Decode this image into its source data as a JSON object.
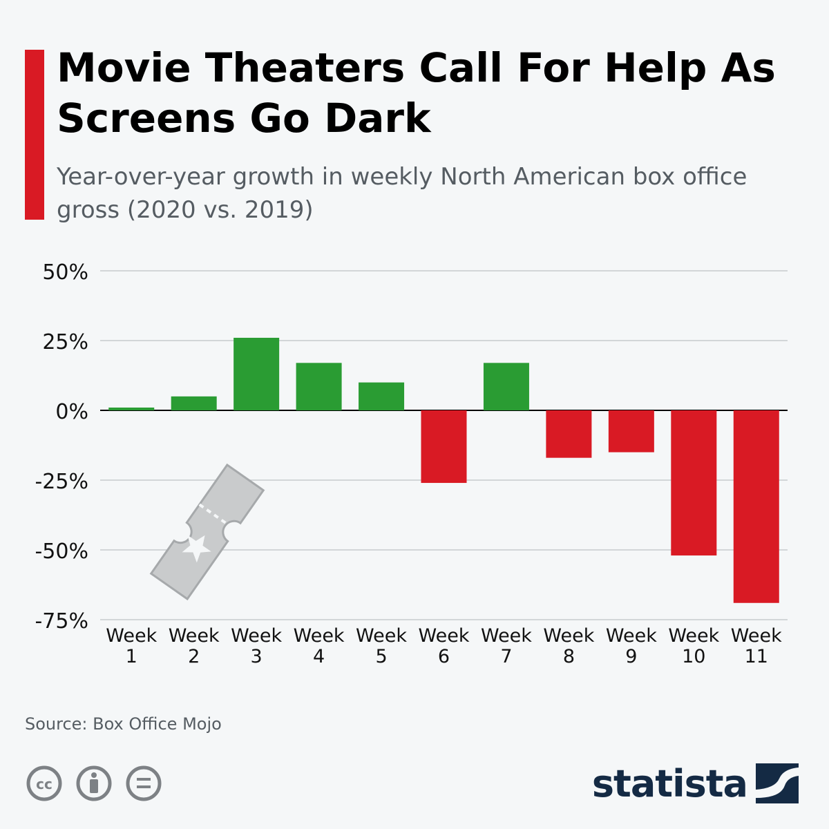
{
  "title": "Movie Theaters Call For Help As Screens Go Dark",
  "subtitle": "Year-over-year growth in weekly North American box office gross (2020 vs. 2019)",
  "source": "Source: Box Office Mojo",
  "brand": "statista",
  "colors": {
    "positive": "#2a9c33",
    "negative": "#d91a24",
    "accent": "#d91a24",
    "brand": "#142a44"
  },
  "chart_data": {
    "type": "bar",
    "categories": [
      "Week 1",
      "Week 2",
      "Week 3",
      "Week 4",
      "Week 5",
      "Week 6",
      "Week 7",
      "Week 8",
      "Week 9",
      "Week 10",
      "Week 11"
    ],
    "values": [
      1,
      5,
      26,
      17,
      10,
      -26,
      17,
      -17,
      -15,
      -52,
      -69
    ],
    "ylim": [
      -75,
      50
    ],
    "yticks": [
      50,
      25,
      0,
      -25,
      -50,
      -75
    ],
    "ytick_labels": [
      "50%",
      "25%",
      "0%",
      "-25%",
      "-50%",
      "-75%"
    ],
    "xlabel": "",
    "ylabel": "",
    "grid": true
  }
}
